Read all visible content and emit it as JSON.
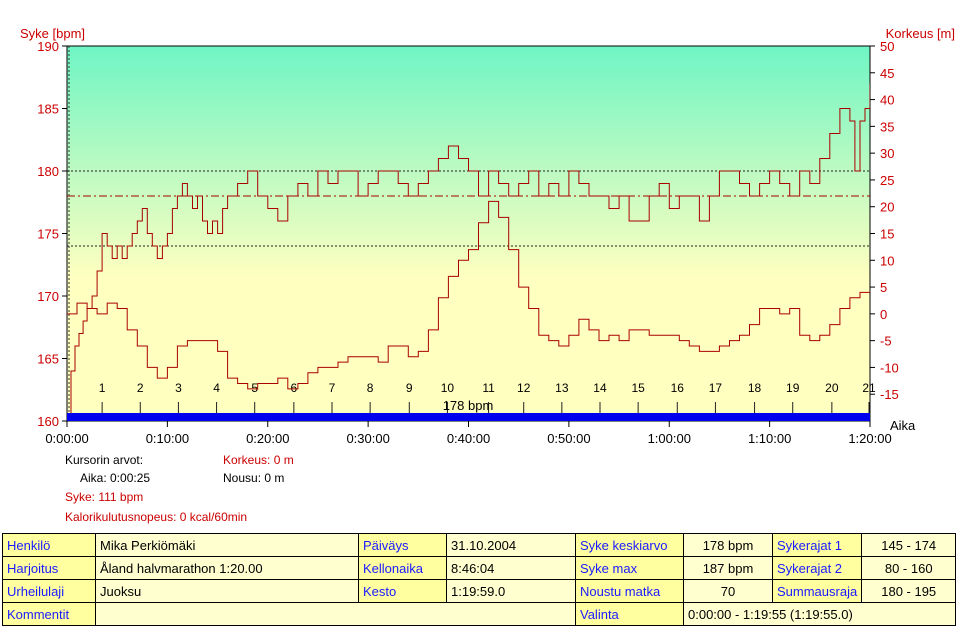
{
  "chart_data": {
    "type": "line",
    "left_axis_label": "Syke [bpm]",
    "right_axis_label": "Korkeus [m]",
    "x_axis_label": "Aika",
    "y_left_range": [
      160,
      190
    ],
    "y_right_range": [
      -20,
      50
    ],
    "y_left_ticks": [
      "160",
      "165",
      "170",
      "175",
      "180",
      "185",
      "190"
    ],
    "y_right_ticks": [
      "-15",
      "-10",
      "-5",
      "0",
      "5",
      "10",
      "15",
      "20",
      "25",
      "30",
      "35",
      "40",
      "45",
      "50"
    ],
    "x_ticks": [
      "0:00:00",
      "0:10:00",
      "0:20:00",
      "0:30:00",
      "0:40:00",
      "0:50:00",
      "1:00:00",
      "1:10:00",
      "1:20:00"
    ],
    "x_range_minutes": [
      0,
      80
    ],
    "lap_labels": [
      "1",
      "2",
      "3",
      "4",
      "5",
      "6",
      "7",
      "8",
      "9",
      "10",
      "11",
      "12",
      "13",
      "14",
      "15",
      "16",
      "17",
      "18",
      "19",
      "20",
      "21"
    ],
    "lap_minutes": [
      3.5,
      7.3,
      11.1,
      14.9,
      18.7,
      22.6,
      26.4,
      30.2,
      34.1,
      37.9,
      42.0,
      45.5,
      49.3,
      53.1,
      56.9,
      60.8,
      64.6,
      68.5,
      72.3,
      76.2,
      79.9
    ],
    "center_label": "178 bpm",
    "zones_bpm": [
      174,
      178,
      180
    ],
    "heart_rate_series": {
      "name": "Syke",
      "x_minutes": [
        0,
        0.4,
        0.8,
        1.2,
        1.6,
        2.0,
        2.5,
        3.0,
        3.5,
        4.0,
        4.5,
        5.0,
        5.5,
        6.0,
        6.5,
        7.0,
        7.5,
        8.0,
        8.5,
        9.0,
        9.5,
        10.0,
        10.5,
        11.0,
        11.5,
        12.0,
        12.5,
        13.0,
        13.5,
        14.0,
        14.5,
        15.0,
        15.5,
        16.0,
        17.0,
        18.0,
        19.0,
        20.0,
        21.0,
        22.0,
        23.0,
        24.0,
        25.0,
        26.0,
        27.0,
        28.0,
        29.0,
        30.0,
        31.0,
        32.0,
        33.0,
        34.0,
        35.0,
        36.0,
        37.0,
        38.0,
        39.0,
        40.0,
        41.0,
        42.0,
        43.0,
        44.0,
        45.0,
        46.0,
        47.0,
        48.0,
        49.0,
        50.0,
        51.0,
        52.0,
        53.0,
        54.0,
        55.0,
        56.0,
        57.0,
        58.0,
        59.0,
        60.0,
        61.0,
        62.0,
        63.0,
        64.0,
        65.0,
        66.0,
        67.0,
        68.0,
        69.0,
        70.0,
        71.0,
        72.0,
        73.0,
        74.0,
        75.0,
        76.0,
        77.0,
        78.0,
        78.5,
        79.0,
        79.5,
        80.0
      ],
      "values": [
        160,
        164,
        166,
        167,
        168,
        169,
        170,
        172,
        175,
        174,
        173,
        174,
        173,
        174,
        175,
        176,
        177,
        175,
        174,
        173,
        174,
        175,
        177,
        178,
        179,
        178,
        177,
        178,
        176,
        175,
        176,
        175,
        177,
        178,
        179,
        180,
        178,
        177,
        176,
        178,
        179,
        178,
        180,
        179,
        180,
        180,
        178,
        179,
        180,
        180,
        179,
        178,
        179,
        180,
        181,
        182,
        181,
        180,
        178,
        180,
        179,
        178,
        179,
        180,
        178,
        179,
        178,
        180,
        179,
        178,
        178,
        177,
        178,
        176,
        176,
        178,
        179,
        177,
        178,
        178,
        176,
        178,
        180,
        180,
        179,
        178,
        179,
        180,
        179,
        178,
        180,
        179,
        181,
        183,
        185,
        184,
        180,
        184,
        185,
        187
      ]
    },
    "altitude_series": {
      "name": "Korkeus",
      "x_minutes": [
        0,
        1,
        2,
        3,
        4,
        5,
        6,
        7,
        8,
        9,
        10,
        11,
        12,
        13,
        14,
        15,
        16,
        17,
        18,
        19,
        20,
        21,
        22,
        23,
        24,
        25,
        26,
        27,
        28,
        29,
        30,
        31,
        32,
        33,
        34,
        35,
        36,
        37,
        38,
        39,
        40,
        41,
        42,
        43,
        44,
        45,
        46,
        47,
        48,
        49,
        50,
        51,
        52,
        53,
        54,
        55,
        56,
        57,
        58,
        59,
        60,
        61,
        62,
        63,
        64,
        65,
        66,
        67,
        68,
        69,
        70,
        71,
        72,
        73,
        74,
        75,
        76,
        77,
        78,
        79,
        80
      ],
      "values": [
        0,
        2,
        1,
        0,
        2,
        1,
        -3,
        -6,
        -10,
        -12,
        -10,
        -6,
        -5,
        -5,
        -5,
        -7,
        -12,
        -13,
        -14,
        -13,
        -13,
        -12,
        -14,
        -13,
        -11,
        -10,
        -10,
        -9,
        -8,
        -8,
        -8,
        -9,
        -6,
        -6,
        -8,
        -7,
        -3,
        3,
        7,
        10,
        12,
        17,
        21,
        18,
        12,
        5,
        1,
        -4,
        -5,
        -6,
        -4,
        -1,
        -3,
        -5,
        -4,
        -5,
        -3,
        -3,
        -4,
        -4,
        -4,
        -5,
        -6,
        -7,
        -7,
        -6,
        -5,
        -4,
        -2,
        1,
        1,
        0,
        1,
        -4,
        -5,
        -4,
        -2,
        1,
        3,
        4,
        4
      ]
    }
  },
  "readout": {
    "title": "Kursorin arvot:",
    "time": "Aika: 0:00:25",
    "hr": "Syke: 111 bpm",
    "cal": "Kalorikulutusnopeus: 0 kcal/60min",
    "alt": "Korkeus: 0 m",
    "ascent": "Nousu: 0 m"
  },
  "info": {
    "row1": [
      "Henkilö",
      "Mika Perkiömäki",
      "Päiväys",
      "31.10.2004",
      "Syke keskiarvo",
      "178 bpm",
      "Sykerajat 1",
      "145 - 174"
    ],
    "row2": [
      "Harjoitus",
      "Åland halvmarathon 1:20.00",
      "Kellonaika",
      "8:46:04",
      "Syke max",
      "187 bpm",
      "Sykerajat 2",
      "80 - 160"
    ],
    "row3": [
      "Urheilulaji",
      "Juoksu",
      "Kesto",
      "1:19:59.0",
      "Noustu matka",
      "70",
      "Summausraja",
      "180 - 195"
    ],
    "row4": [
      "Kommentit",
      "",
      "Valinta",
      "0:00:00 - 1:19:55 (1:19:55.0)"
    ]
  },
  "colors": {
    "heart_rate_line": "#aa0000",
    "altitude_line": "#aa0000",
    "plot_top": "#6ff5c4",
    "plot_bottom": "#ffffc0",
    "selection_bar": "#0000ee",
    "axis_text": "#cc0000",
    "table_label": "#1a1aff",
    "table_label_bg": "#ffffa0",
    "table_value_bg": "#ffffd0"
  }
}
